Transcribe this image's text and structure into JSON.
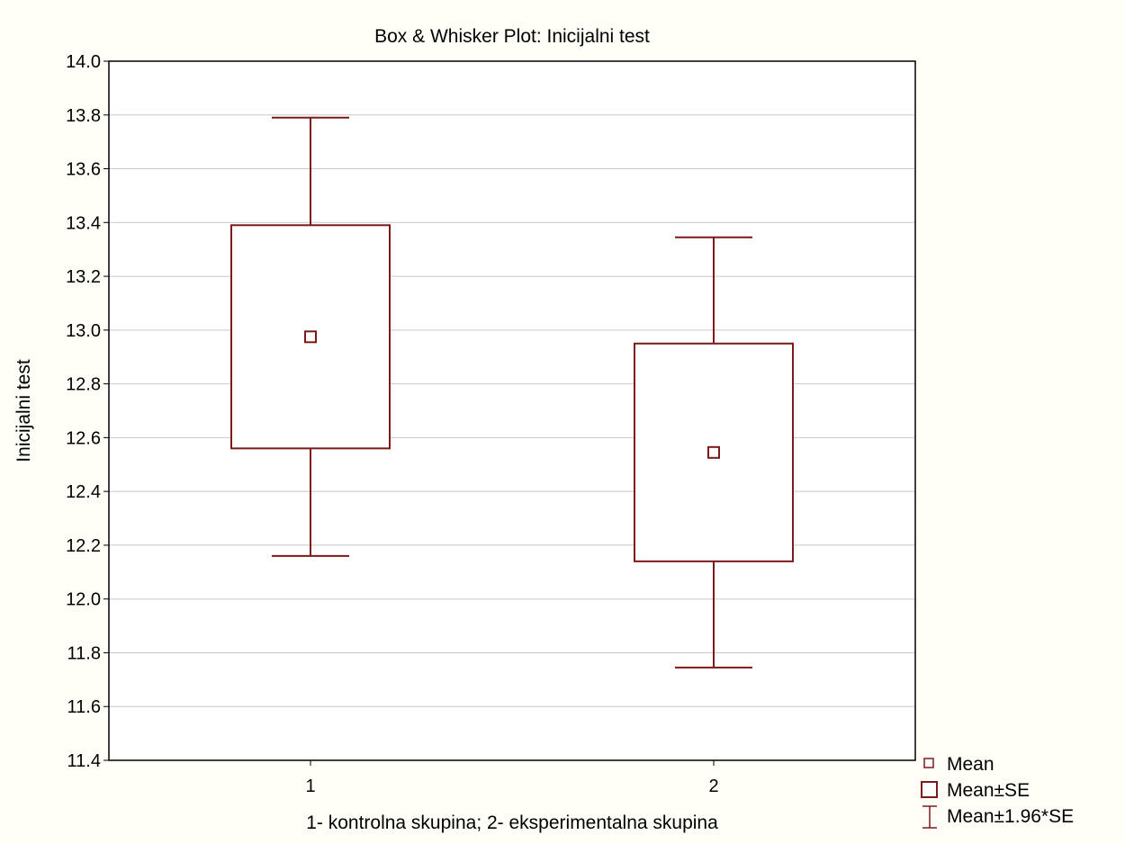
{
  "chart_data": {
    "type": "box",
    "title": "Box & Whisker Plot: Inicijalni test",
    "xlabel": "1- kontrolna skupina; 2- eksperimentalna skupina",
    "ylabel": "Inicijalni test",
    "ylim": [
      11.4,
      14.0
    ],
    "yticks": [
      "11.4",
      "11.6",
      "11.8",
      "12.0",
      "12.2",
      "12.4",
      "12.6",
      "12.8",
      "13.0",
      "13.2",
      "13.4",
      "13.6",
      "13.8",
      "14.0"
    ],
    "categories": [
      "1",
      "2"
    ],
    "groups": [
      {
        "category": "1",
        "mean": 12.975,
        "se_low": 12.56,
        "se_high": 13.39,
        "ci_low": 12.16,
        "ci_high": 13.79
      },
      {
        "category": "2",
        "mean": 12.545,
        "se_low": 12.14,
        "se_high": 12.95,
        "ci_low": 11.745,
        "ci_high": 13.345
      }
    ],
    "grid": true,
    "legend_position": "bottom-right",
    "legend": [
      "Mean",
      "Mean±SE",
      "Mean±1.96*SE"
    ],
    "colors": {
      "series": "#7a1a1a",
      "grid": "#c8c8c8",
      "background": "#fffff8",
      "plot_background": "#ffffff"
    }
  }
}
